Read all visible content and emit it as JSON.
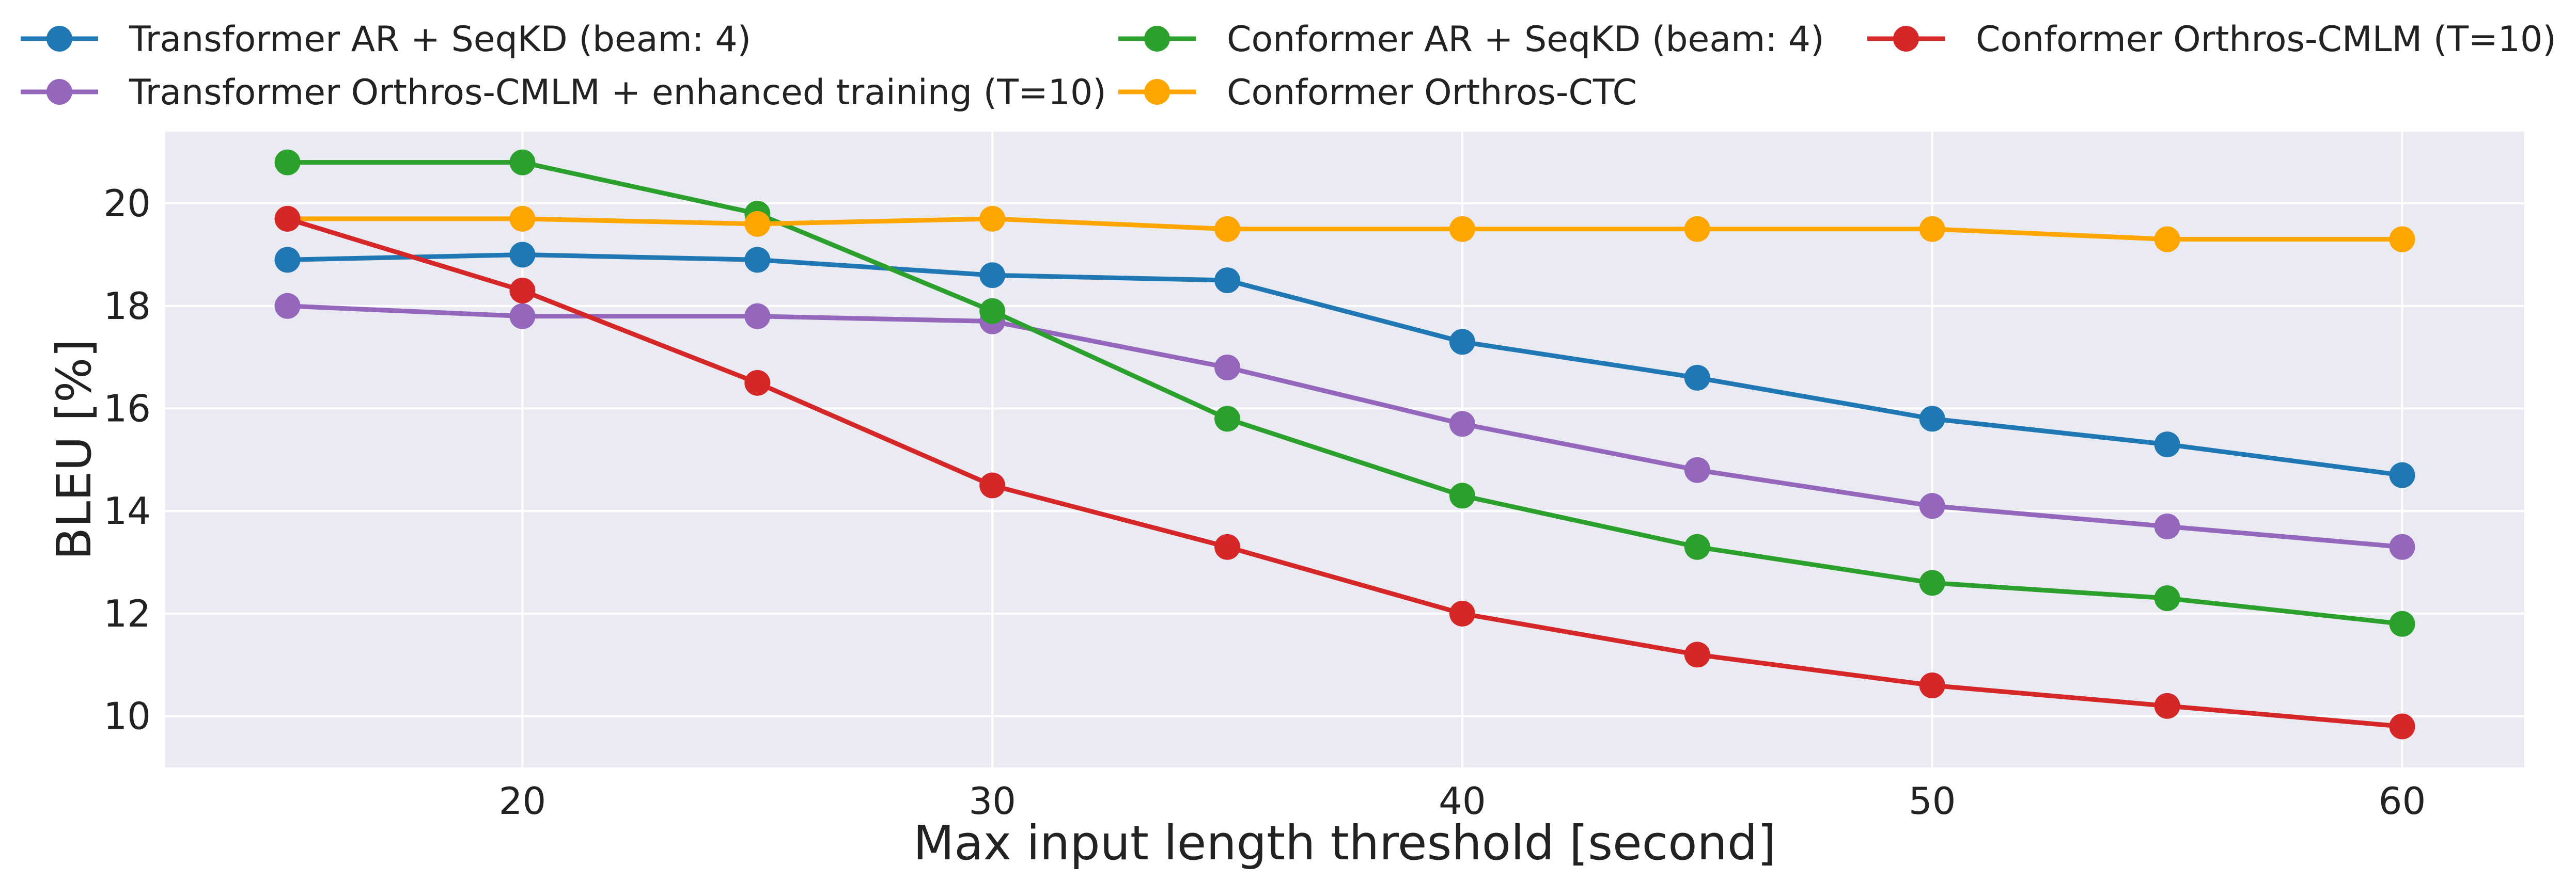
{
  "chart_data": {
    "type": "line",
    "title": "",
    "xlabel": "Max input length threshold [second]",
    "ylabel": "BLEU [%]",
    "xlim": [
      12.4,
      62.6
    ],
    "ylim": [
      9.0,
      21.4
    ],
    "xticks": [
      20,
      30,
      40,
      50,
      60
    ],
    "yticks": [
      10,
      12,
      14,
      16,
      18,
      20
    ],
    "grid": true,
    "legend_position": "top",
    "x": [
      15,
      20,
      25,
      30,
      35,
      40,
      45,
      50,
      55,
      60
    ],
    "series": [
      {
        "name": "Transformer AR + SeqKD (beam: 4)",
        "color": "#1f77b4",
        "values": [
          18.9,
          19.0,
          18.9,
          18.6,
          18.5,
          17.3,
          16.6,
          15.8,
          15.3,
          14.7
        ]
      },
      {
        "name": "Transformer Orthros-CMLM + enhanced training (T=10)",
        "color": "#9467bd",
        "values": [
          18.0,
          17.8,
          17.8,
          17.7,
          16.8,
          15.7,
          14.8,
          14.1,
          13.7,
          13.3
        ]
      },
      {
        "name": "Conformer AR + SeqKD (beam: 4)",
        "color": "#2ca02c",
        "values": [
          20.8,
          20.8,
          19.8,
          17.9,
          15.8,
          14.3,
          13.3,
          12.6,
          12.3,
          11.8
        ]
      },
      {
        "name": "Conformer Orthros-CTC",
        "color": "#ffa500",
        "values": [
          19.7,
          19.7,
          19.6,
          19.7,
          19.5,
          19.5,
          19.5,
          19.5,
          19.3,
          19.3
        ]
      },
      {
        "name": "Conformer Orthros-CMLM (T=10)",
        "color": "#d62728",
        "values": [
          19.7,
          18.3,
          16.5,
          14.5,
          13.3,
          12.0,
          11.2,
          10.6,
          10.2,
          9.8
        ]
      }
    ]
  }
}
